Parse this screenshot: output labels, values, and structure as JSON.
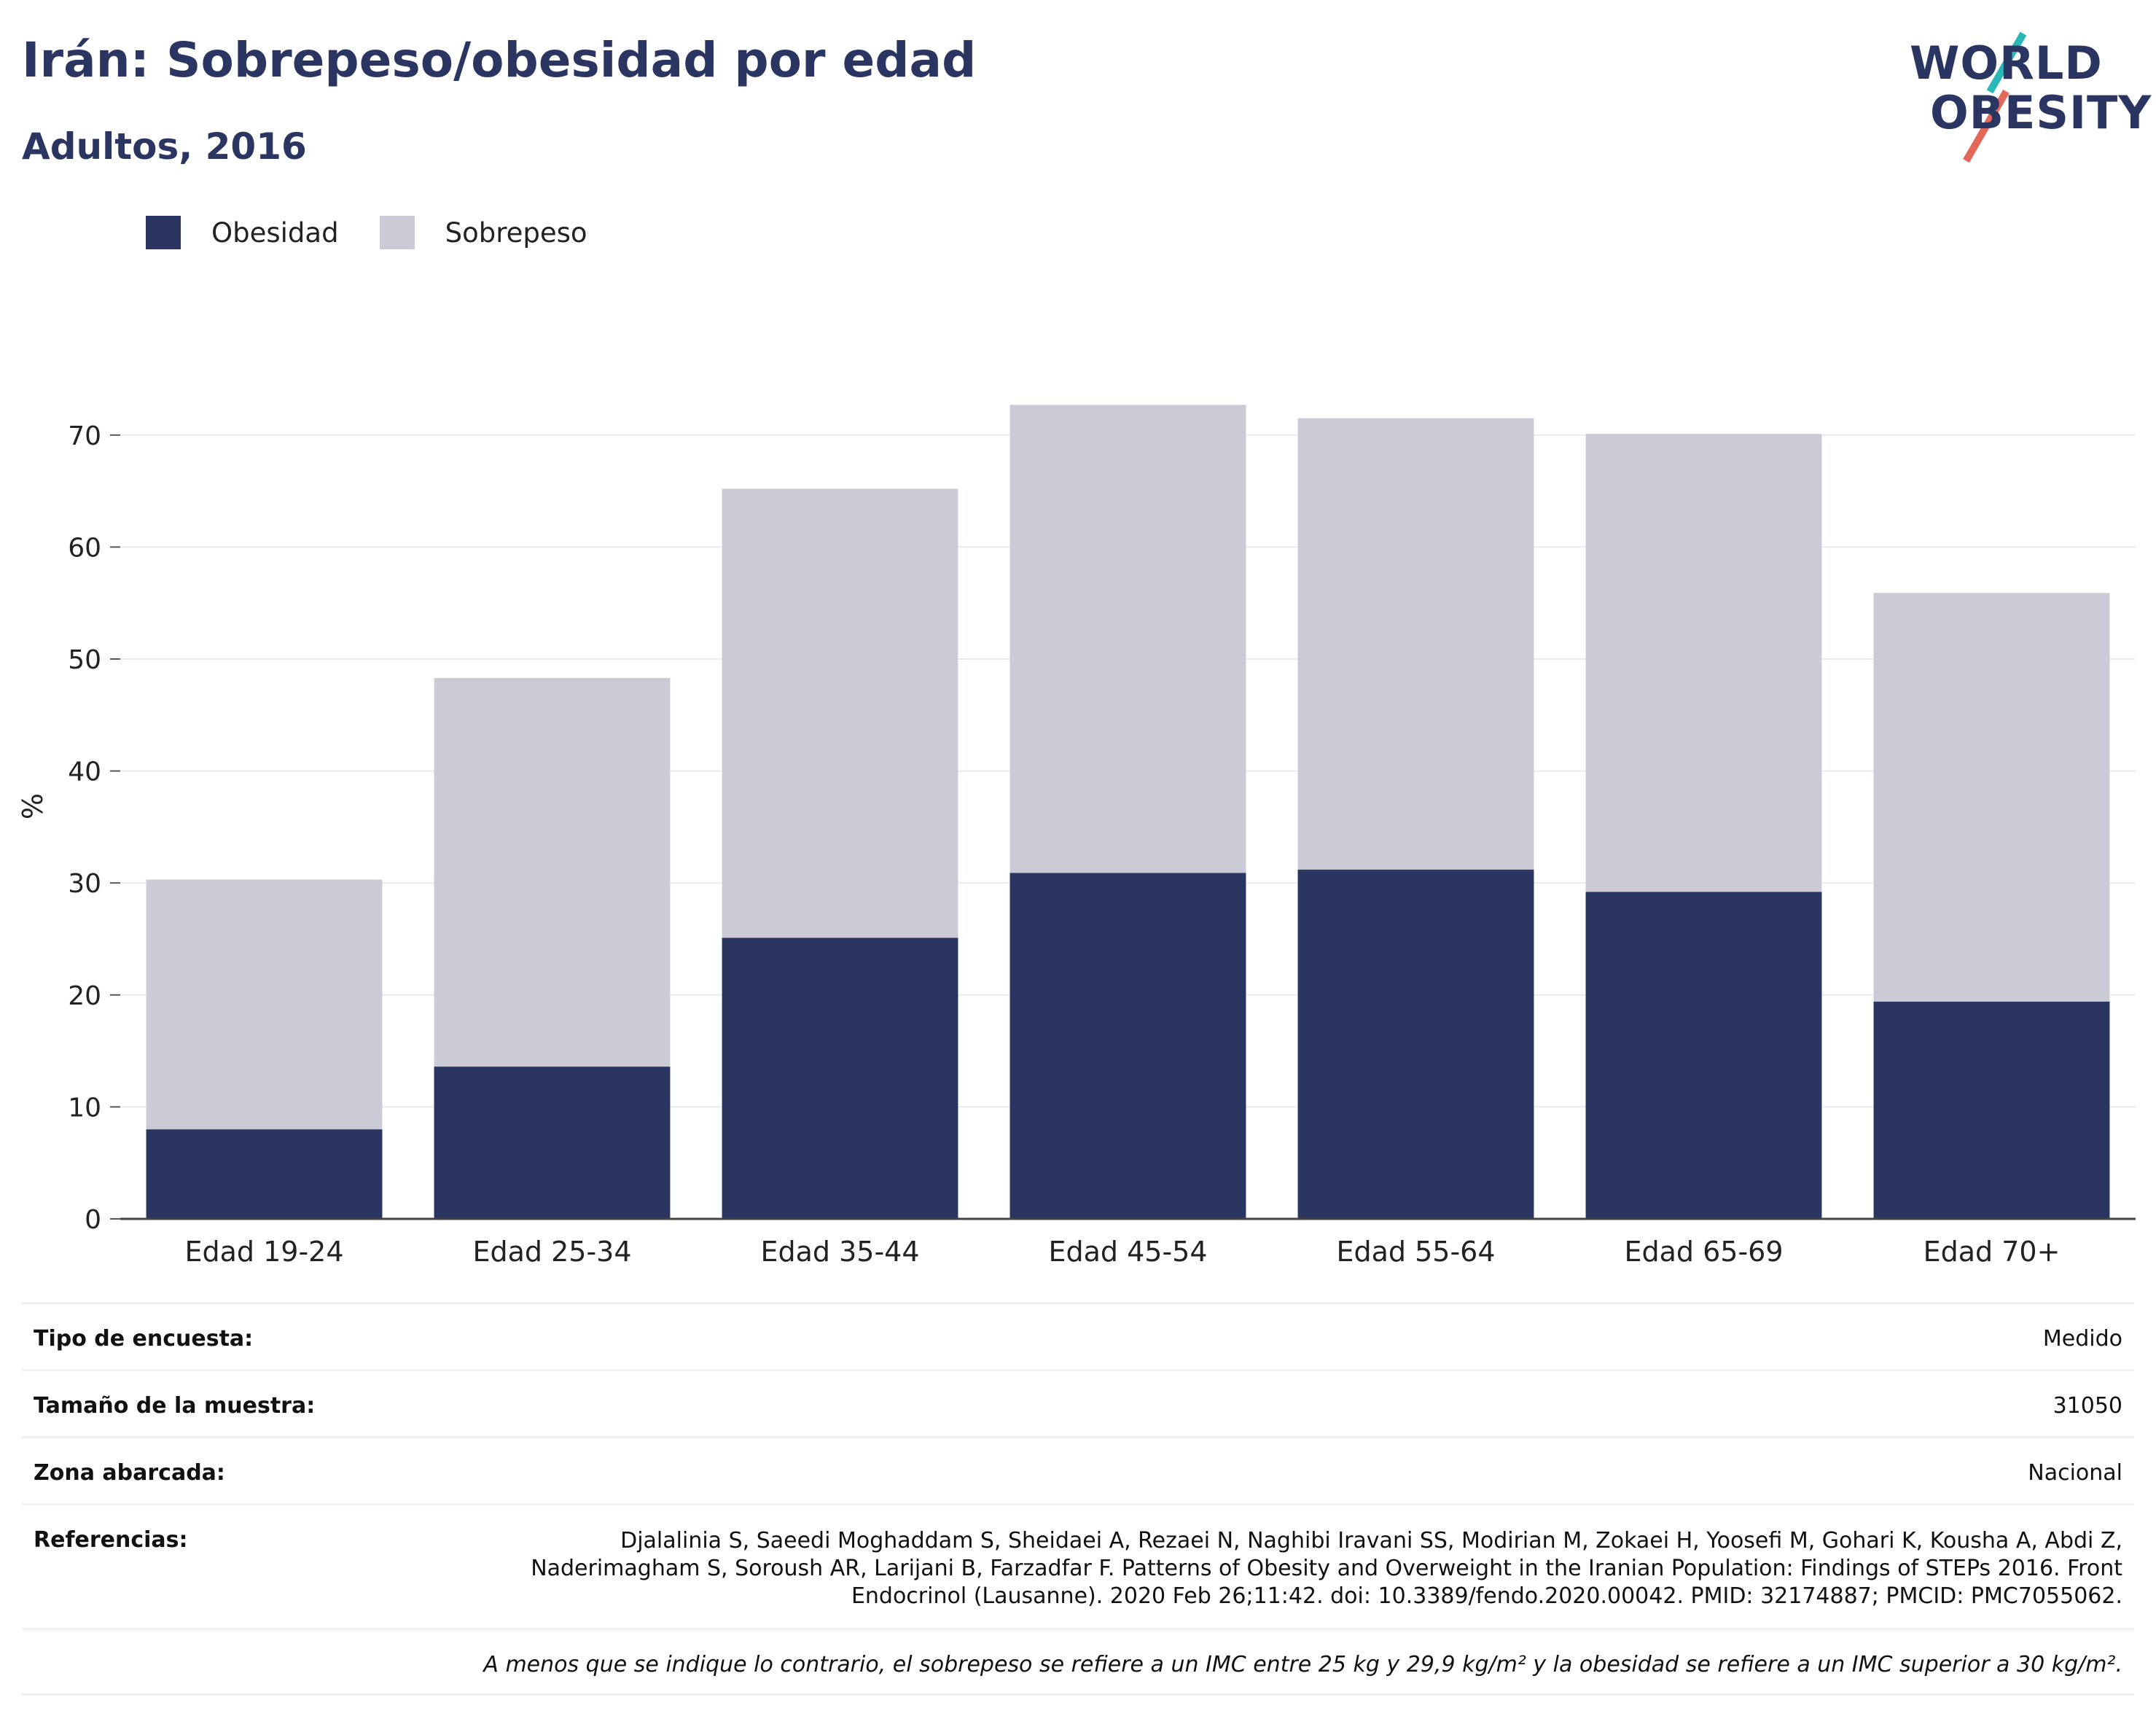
{
  "header": {
    "title": "Irán: Sobrepeso/obesidad por edad",
    "subtitle": "Adultos, 2016"
  },
  "logo": {
    "line1": "WORLD",
    "line2": "OBESITY"
  },
  "legend": [
    {
      "label": "Obesidad",
      "color": "#2a3562"
    },
    {
      "label": "Sobrepeso",
      "color": "#cacbd6"
    }
  ],
  "chart_data": {
    "type": "bar",
    "stacked": true,
    "categories": [
      "Edad 19-24",
      "Edad 25-34",
      "Edad 35-44",
      "Edad 45-54",
      "Edad 55-64",
      "Edad 65-69",
      "Edad 70+"
    ],
    "series": [
      {
        "name": "Obesidad",
        "color": "#2a3562",
        "values": [
          8.0,
          13.6,
          25.1,
          30.9,
          31.2,
          29.2,
          19.4
        ]
      },
      {
        "name": "Sobrepeso",
        "color": "#cacbd6",
        "values": [
          22.3,
          34.7,
          40.1,
          41.8,
          40.3,
          40.9,
          36.5
        ]
      }
    ],
    "ylabel": "%",
    "ylim": [
      0,
      75
    ],
    "yticks": [
      0,
      10,
      20,
      30,
      40,
      50,
      60,
      70
    ],
    "grid": true,
    "legend_position": "top-left"
  },
  "info": {
    "rows": [
      {
        "label": "Tipo de encuesta:",
        "value": "Medido"
      },
      {
        "label": "Tamaño de la muestra:",
        "value": "31050"
      },
      {
        "label": "Zona abarcada:",
        "value": "Nacional"
      },
      {
        "label": "Referencias:",
        "value": "Djalalinia S, Saeedi Moghaddam S, Sheidaei A, Rezaei N, Naghibi Iravani SS, Modirian M, Zokaei H, Yoosefi M, Gohari K, Kousha A, Abdi Z, Naderimagham S, Soroush AR, Larijani B, Farzadfar F. Patterns of Obesity and Overweight in the Iranian Population: Findings of STEPs 2016. Front Endocrinol (Lausanne). 2020 Feb 26;11:42. doi: 10.3389/fendo.2020.00042. PMID: 32174887; PMCID: PMC7055062."
      }
    ],
    "footnote": "A menos que se indique lo contrario, el sobrepeso se refiere a un IMC entre 25 kg y 29,9 kg/m² y la obesidad se refiere a un IMC superior a 30 kg/m²."
  }
}
